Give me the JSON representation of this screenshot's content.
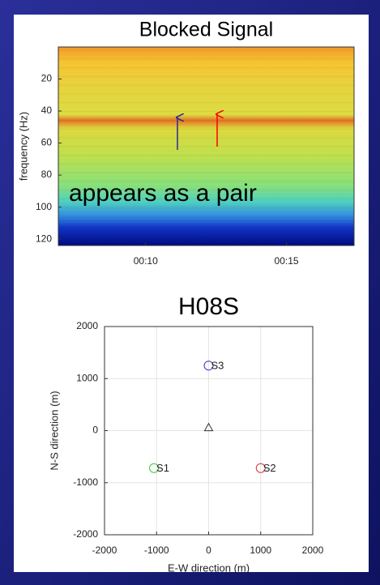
{
  "chart_data": [
    {
      "type": "spectrogram",
      "title": "Blocked Signal",
      "ylabel": "frequency (Hz)",
      "xlim": [
        6.9,
        17.4
      ],
      "xticks": [
        {
          "value": 10,
          "label": "00:10"
        },
        {
          "value": 15,
          "label": "00:15"
        }
      ],
      "ylim": [
        0,
        124
      ],
      "yticks": [
        20,
        40,
        60,
        80,
        100,
        120
      ],
      "y_reversed": true,
      "grid": false,
      "annotation": "appears as a pair"
    },
    {
      "type": "scatter",
      "title": "H08S",
      "xlabel": "E-W direction (m)",
      "ylabel": "N-S direction (m)",
      "xlim": [
        -2000,
        2000
      ],
      "xticks": [
        -2000,
        -1000,
        0,
        1000,
        2000
      ],
      "ylim": [
        -2000,
        2000
      ],
      "yticks": [
        -2000,
        -1000,
        0,
        1000,
        2000
      ],
      "grid": true,
      "series": [
        {
          "name": "S1",
          "color": "#33cc33",
          "marker": "circle",
          "x": [
            -1050
          ],
          "values": [
            -720
          ]
        },
        {
          "name": "S2",
          "color": "#e03030",
          "marker": "circle",
          "x": [
            1000
          ],
          "values": [
            -720
          ]
        },
        {
          "name": "S3",
          "color": "#3030d0",
          "marker": "circle",
          "x": [
            0
          ],
          "values": [
            1250
          ]
        },
        {
          "color": "#333333",
          "marker": "triangle",
          "x": [
            0
          ],
          "values": [
            60
          ]
        }
      ]
    }
  ]
}
